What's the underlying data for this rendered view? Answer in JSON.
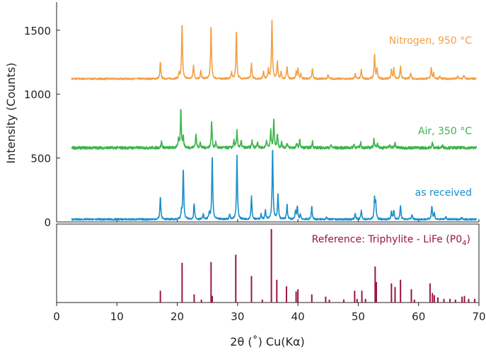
{
  "chart_data": {
    "type": "line",
    "xlabel": "2θ (˚) Cu(Kα)",
    "ylabel": "Intensity (Counts)",
    "xlim": [
      0,
      70
    ],
    "ylim": [
      0,
      1720
    ],
    "x_ticks": [
      0,
      10,
      20,
      30,
      40,
      50,
      60,
      70
    ],
    "y_ticks": [
      0,
      500,
      1000,
      1500
    ],
    "colors": {
      "nitrogen": "#f5a044",
      "air": "#3cb44a",
      "received": "#1a8fcc",
      "reference": "#9b1445",
      "axis": "#231f20"
    },
    "series": [
      {
        "name": "Nitrogen, 950 °C",
        "baseline": 1120,
        "peaks": [
          [
            17.2,
            130
          ],
          [
            20.3,
            40
          ],
          [
            20.8,
            430
          ],
          [
            22.7,
            110
          ],
          [
            23.9,
            60
          ],
          [
            25.6,
            420
          ],
          [
            29.0,
            50
          ],
          [
            29.8,
            380
          ],
          [
            32.3,
            120
          ],
          [
            34.3,
            60
          ],
          [
            35.1,
            80
          ],
          [
            35.7,
            460
          ],
          [
            36.6,
            140
          ],
          [
            37.2,
            50
          ],
          [
            38.2,
            100
          ],
          [
            39.7,
            50
          ],
          [
            40.0,
            80
          ],
          [
            40.5,
            40
          ],
          [
            42.4,
            80
          ],
          [
            45.0,
            30
          ],
          [
            49.5,
            40
          ],
          [
            50.5,
            70
          ],
          [
            52.7,
            190
          ],
          [
            53.1,
            80
          ],
          [
            55.5,
            70
          ],
          [
            55.9,
            80
          ],
          [
            57.0,
            100
          ],
          [
            58.7,
            50
          ],
          [
            62.1,
            90
          ],
          [
            62.5,
            40
          ],
          [
            63.5,
            20
          ],
          [
            66.5,
            20
          ],
          [
            67.5,
            30
          ]
        ]
      },
      {
        "name": "Air, 350 °C",
        "baseline": 580,
        "peaks": [
          [
            17.4,
            50
          ],
          [
            20.2,
            60
          ],
          [
            20.6,
            300
          ],
          [
            21.0,
            80
          ],
          [
            23.1,
            110
          ],
          [
            23.8,
            40
          ],
          [
            25.7,
            200
          ],
          [
            26.4,
            40
          ],
          [
            29.4,
            60
          ],
          [
            29.9,
            130
          ],
          [
            30.6,
            50
          ],
          [
            32.4,
            60
          ],
          [
            33.3,
            50
          ],
          [
            34.8,
            60
          ],
          [
            35.5,
            130
          ],
          [
            36.0,
            220
          ],
          [
            36.6,
            110
          ],
          [
            37.3,
            40
          ],
          [
            38.2,
            40
          ],
          [
            39.8,
            30
          ],
          [
            40.3,
            60
          ],
          [
            42.4,
            50
          ],
          [
            45.5,
            20
          ],
          [
            49.3,
            30
          ],
          [
            50.4,
            40
          ],
          [
            52.6,
            70
          ],
          [
            53.2,
            40
          ],
          [
            55.2,
            30
          ],
          [
            56.1,
            40
          ],
          [
            62.3,
            40
          ],
          [
            64.0,
            20
          ]
        ]
      },
      {
        "name": "as received",
        "baseline": 20,
        "peaks": [
          [
            17.2,
            180
          ],
          [
            20.7,
            60
          ],
          [
            21.0,
            390
          ],
          [
            22.8,
            130
          ],
          [
            24.3,
            40
          ],
          [
            25.3,
            50
          ],
          [
            25.8,
            500
          ],
          [
            28.7,
            40
          ],
          [
            29.9,
            500
          ],
          [
            32.3,
            180
          ],
          [
            33.9,
            40
          ],
          [
            34.6,
            70
          ],
          [
            35.8,
            565
          ],
          [
            36.7,
            200
          ],
          [
            38.2,
            120
          ],
          [
            39.6,
            60
          ],
          [
            39.9,
            100
          ],
          [
            40.4,
            40
          ],
          [
            42.3,
            100
          ],
          [
            44.7,
            20
          ],
          [
            49.5,
            50
          ],
          [
            50.5,
            70
          ],
          [
            52.7,
            160
          ],
          [
            52.9,
            120
          ],
          [
            55.5,
            60
          ],
          [
            55.9,
            70
          ],
          [
            57.0,
            110
          ],
          [
            58.9,
            40
          ],
          [
            62.2,
            110
          ],
          [
            62.6,
            50
          ],
          [
            64.5,
            20
          ],
          [
            67.2,
            20
          ]
        ]
      }
    ],
    "reference": {
      "name": "Reference: Triphylite - LiFe (P0",
      "name_subscript": "4",
      "name_close": ")",
      "ylim": [
        0,
        100
      ],
      "peaks": [
        [
          17.2,
          16
        ],
        [
          20.8,
          54
        ],
        [
          22.8,
          11
        ],
        [
          24.0,
          4
        ],
        [
          25.6,
          55
        ],
        [
          25.8,
          9
        ],
        [
          29.7,
          65
        ],
        [
          32.3,
          36
        ],
        [
          34.1,
          4
        ],
        [
          35.6,
          100
        ],
        [
          36.5,
          31
        ],
        [
          38.1,
          22
        ],
        [
          39.7,
          15
        ],
        [
          40.0,
          18
        ],
        [
          42.3,
          11
        ],
        [
          44.6,
          8
        ],
        [
          45.2,
          4
        ],
        [
          47.6,
          4
        ],
        [
          49.4,
          16
        ],
        [
          49.8,
          5
        ],
        [
          50.6,
          16
        ],
        [
          51.2,
          5
        ],
        [
          52.8,
          49
        ],
        [
          53.0,
          28
        ],
        [
          55.5,
          26
        ],
        [
          56.1,
          21
        ],
        [
          57.0,
          31
        ],
        [
          58.8,
          18
        ],
        [
          59.3,
          4
        ],
        [
          61.9,
          26
        ],
        [
          62.3,
          13
        ],
        [
          62.6,
          10
        ],
        [
          63.2,
          7
        ],
        [
          64.2,
          5
        ],
        [
          65.2,
          5
        ],
        [
          66.1,
          4
        ],
        [
          67.2,
          8
        ],
        [
          67.6,
          9
        ],
        [
          68.3,
          5
        ],
        [
          69.3,
          5
        ]
      ]
    }
  }
}
